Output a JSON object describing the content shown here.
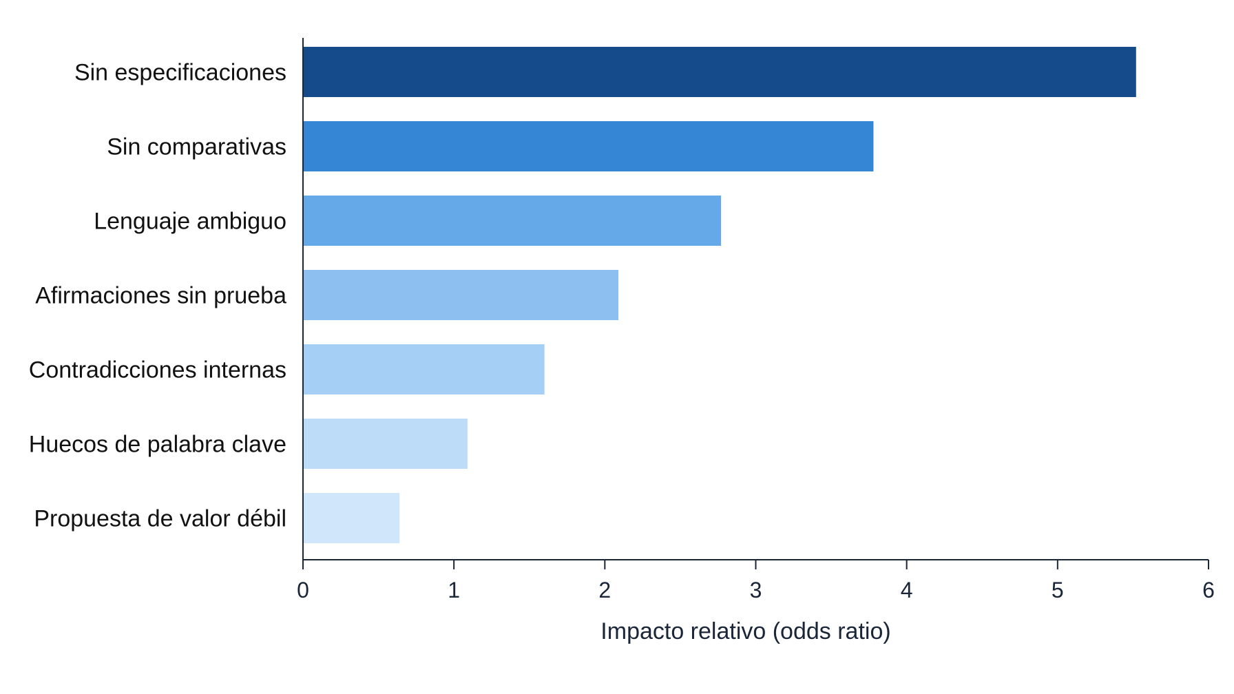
{
  "chart_data": {
    "type": "bar",
    "orientation": "horizontal",
    "categories": [
      "Sin especificaciones",
      "Sin comparativas",
      "Lenguaje ambiguo",
      "Afirmaciones sin prueba",
      "Contradicciones internas",
      "Huecos de palabra clave",
      "Propuesta de valor débil"
    ],
    "values": [
      5.52,
      3.78,
      2.77,
      2.09,
      1.6,
      1.09,
      0.64
    ],
    "colors": [
      "#154b8a",
      "#3686d6",
      "#66a9e8",
      "#8dc0f1",
      "#a6cff5",
      "#bcdcf8",
      "#d0e6fa"
    ],
    "title": "",
    "xlabel": "Impacto relativo (odds ratio)",
    "ylabel": "",
    "xlim": [
      0,
      6
    ],
    "xticks": [
      0,
      1,
      2,
      3,
      4,
      5,
      6
    ],
    "grid": false,
    "legend": "none"
  }
}
